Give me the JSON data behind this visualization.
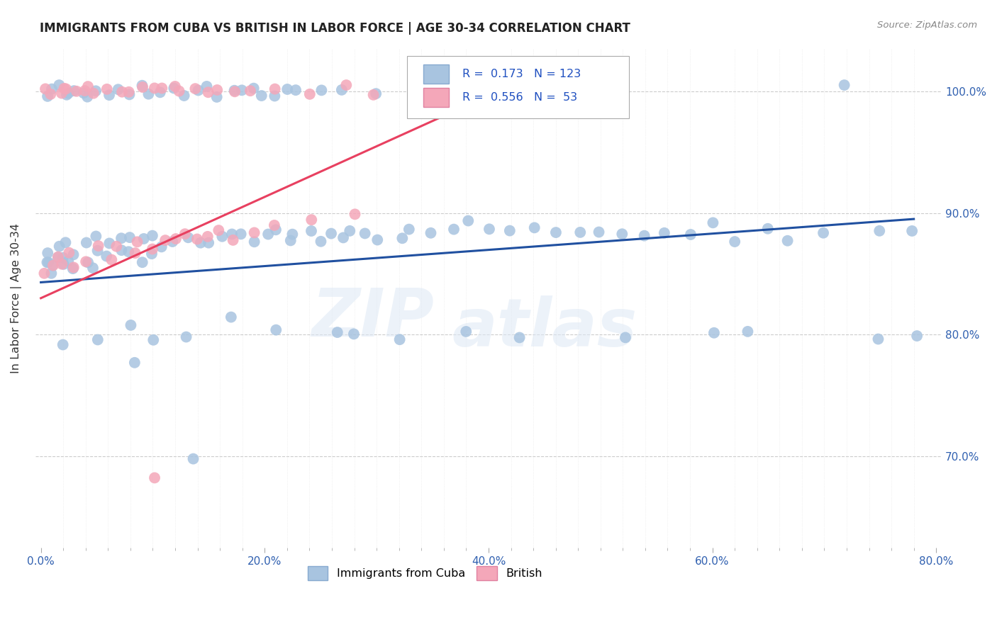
{
  "title": "IMMIGRANTS FROM CUBA VS BRITISH IN LABOR FORCE | AGE 30-34 CORRELATION CHART",
  "source": "Source: ZipAtlas.com",
  "xlabel_ticks": [
    "0.0%",
    "",
    "",
    "",
    "",
    "",
    "",
    "",
    "",
    "",
    "20.0%",
    "",
    "",
    "",
    "",
    "",
    "",
    "",
    "",
    "",
    "40.0%",
    "",
    "",
    "",
    "",
    "",
    "",
    "",
    "",
    "",
    "60.0%",
    "",
    "",
    "",
    "",
    "",
    "",
    "",
    "",
    "",
    "80.0%"
  ],
  "xlabel_vals_major": [
    0.0,
    0.2,
    0.4,
    0.6,
    0.8
  ],
  "xlabel_vals_minor": [
    0.02,
    0.04,
    0.06,
    0.08,
    0.1,
    0.12,
    0.14,
    0.16,
    0.18,
    0.22,
    0.24,
    0.26,
    0.28,
    0.3,
    0.32,
    0.34,
    0.36,
    0.38,
    0.42,
    0.44,
    0.46,
    0.48,
    0.5,
    0.52,
    0.54,
    0.56,
    0.58,
    0.62,
    0.64,
    0.66,
    0.68,
    0.7,
    0.72,
    0.74,
    0.76,
    0.78
  ],
  "ylabel": "In Labor Force | Age 30-34",
  "ylabel_ticks": [
    "70.0%",
    "80.0%",
    "90.0%",
    "100.0%"
  ],
  "ylabel_vals": [
    0.7,
    0.8,
    0.9,
    1.0
  ],
  "xlim": [
    -0.005,
    0.805
  ],
  "ylim": [
    0.625,
    1.035
  ],
  "blue_R": 0.173,
  "blue_N": 123,
  "pink_R": 0.556,
  "pink_N": 53,
  "blue_color": "#a8c4e0",
  "pink_color": "#f4a7b9",
  "blue_line_color": "#2050a0",
  "pink_line_color": "#e84060",
  "grid_color": "#cccccc",
  "watermark_text": "ZIP",
  "watermark_text2": "atlas",
  "legend_label_blue": "Immigrants from Cuba",
  "legend_label_pink": "British"
}
